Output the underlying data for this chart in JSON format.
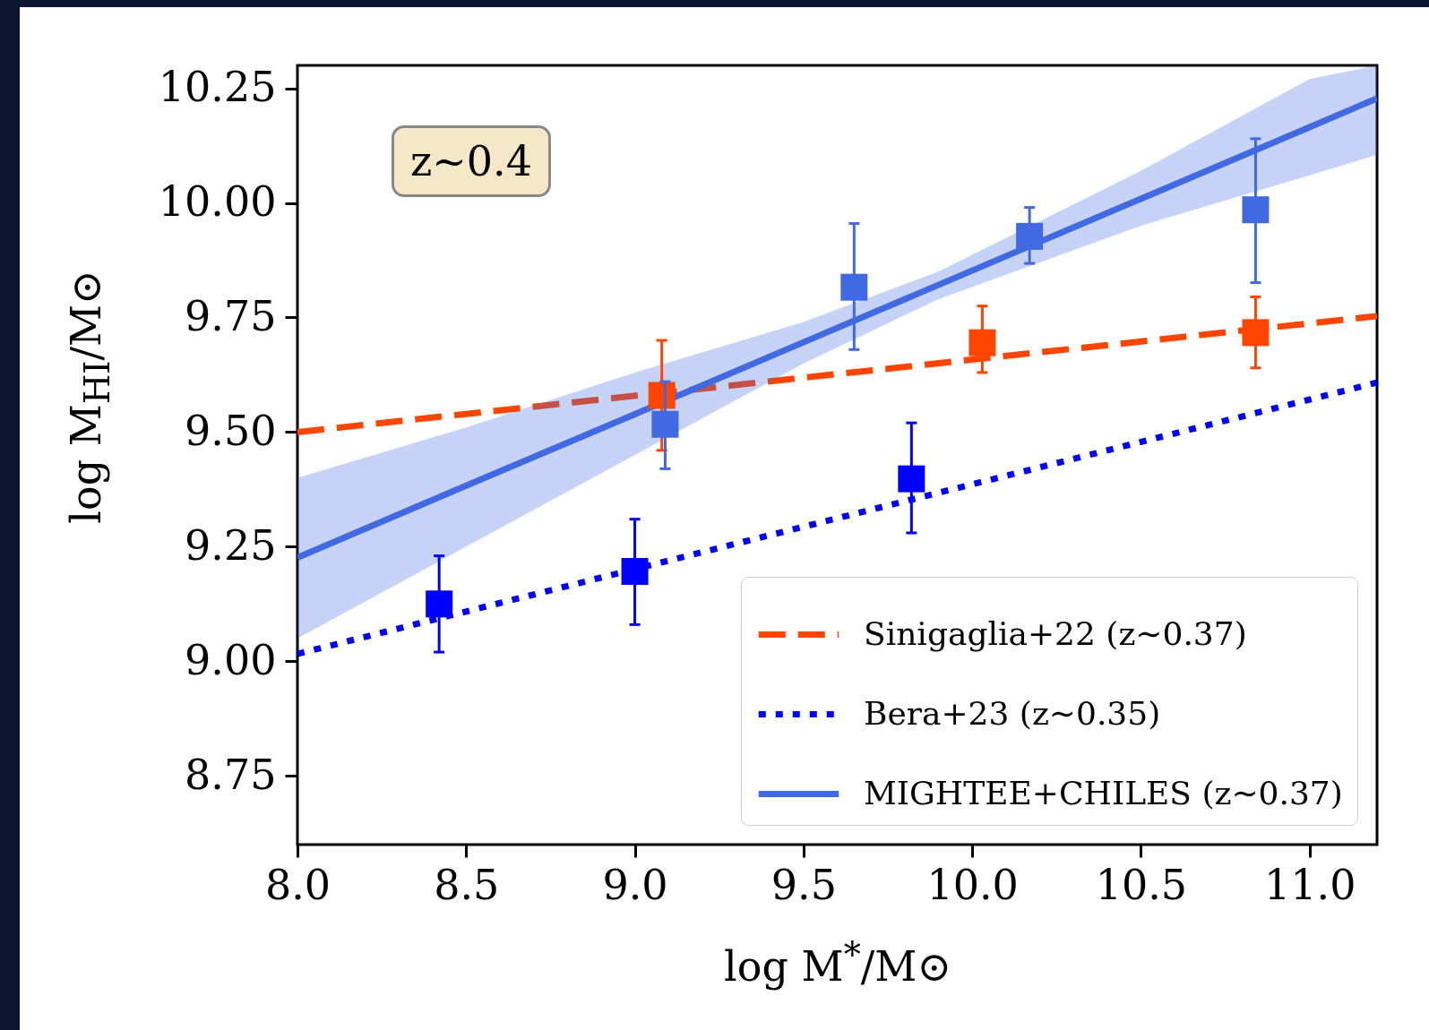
{
  "chart_data": {
    "type": "line",
    "xlabel": "log M$^{*}$/M⊙",
    "ylabel": "log M$_{HI}$/M⊙",
    "annotations": [
      "z∼0.4"
    ],
    "xlim": [
      8.0,
      11.2
    ],
    "ylim": [
      8.6,
      10.3
    ],
    "xticks": [
      {
        "value": 8,
        "label": "8.0"
      },
      {
        "value": 8.5,
        "label": "8.5"
      },
      {
        "value": 9,
        "label": "9.0"
      },
      {
        "value": 9.5,
        "label": "9.5"
      },
      {
        "value": 10,
        "label": "10.0"
      },
      {
        "value": 10.5,
        "label": "10.5"
      },
      {
        "value": 11,
        "label": "11.0"
      }
    ],
    "yticks": [
      {
        "value": 8.75,
        "label": "8.75"
      },
      {
        "value": 9,
        "label": "9.00"
      },
      {
        "value": 9.25,
        "label": "9.25"
      },
      {
        "value": 9.5,
        "label": "9.50"
      },
      {
        "value": 9.75,
        "label": "9.75"
      },
      {
        "value": 10,
        "label": "10.00"
      },
      {
        "value": 10.25,
        "label": "10.25"
      }
    ],
    "grid": false,
    "legend": "bottom right",
    "series": [
      {
        "name": "Sinigaglia+22 (z∼0.37)",
        "line_style": "dashed",
        "color": "#ff4500",
        "x": [
          8.0,
          11.2
        ],
        "values": [
          9.5,
          9.753
        ]
      },
      {
        "name": "Bera+23 (z∼0.35)",
        "line_style": "dotted",
        "color": "#0000ff",
        "x": [
          8.0,
          11.2
        ],
        "values": [
          9.016,
          9.608
        ]
      },
      {
        "name": "MIGHTEE+CHILES (z∼0.37)",
        "line_style": "solid",
        "color": "#4169e1",
        "x": [
          8.0,
          8.5,
          9.0,
          9.5,
          9.9,
          10.5,
          11.0,
          11.2
        ],
        "values": [
          9.226,
          9.383,
          9.539,
          9.696,
          9.821,
          10.009,
          10.165,
          10.228
        ],
        "lower": [
          9.05,
          9.25,
          9.45,
          9.65,
          9.79,
          9.95,
          10.06,
          10.105
        ],
        "upper": [
          9.4,
          9.51,
          9.63,
          9.74,
          9.85,
          10.07,
          10.27,
          10.3
        ]
      },
      {
        "type": "scatter",
        "marker": "square",
        "color": "#ff4500",
        "x": [
          9.08,
          10.03,
          10.84
        ],
        "values": [
          9.58,
          9.695,
          9.717
        ],
        "errors": [
          [
            9.46,
            9.7
          ],
          [
            9.63,
            9.775
          ],
          [
            9.64,
            9.795
          ]
        ]
      },
      {
        "type": "scatter",
        "marker": "square",
        "color": "#0000ff",
        "x": [
          8.42,
          9.0,
          9.82
        ],
        "values": [
          9.125,
          9.196,
          9.398
        ],
        "errors": [
          [
            9.02,
            9.23
          ],
          [
            9.08,
            9.31
          ],
          [
            9.28,
            9.52
          ]
        ]
      },
      {
        "type": "scatter",
        "marker": "square",
        "color": "#4169e1",
        "x": [
          9.09,
          9.65,
          10.17,
          10.84
        ],
        "values": [
          9.517,
          9.816,
          9.927,
          9.985
        ],
        "errors": [
          [
            9.42,
            9.61
          ],
          [
            9.68,
            9.955
          ],
          [
            9.868,
            9.99
          ],
          [
            9.826,
            10.14
          ]
        ]
      }
    ]
  }
}
